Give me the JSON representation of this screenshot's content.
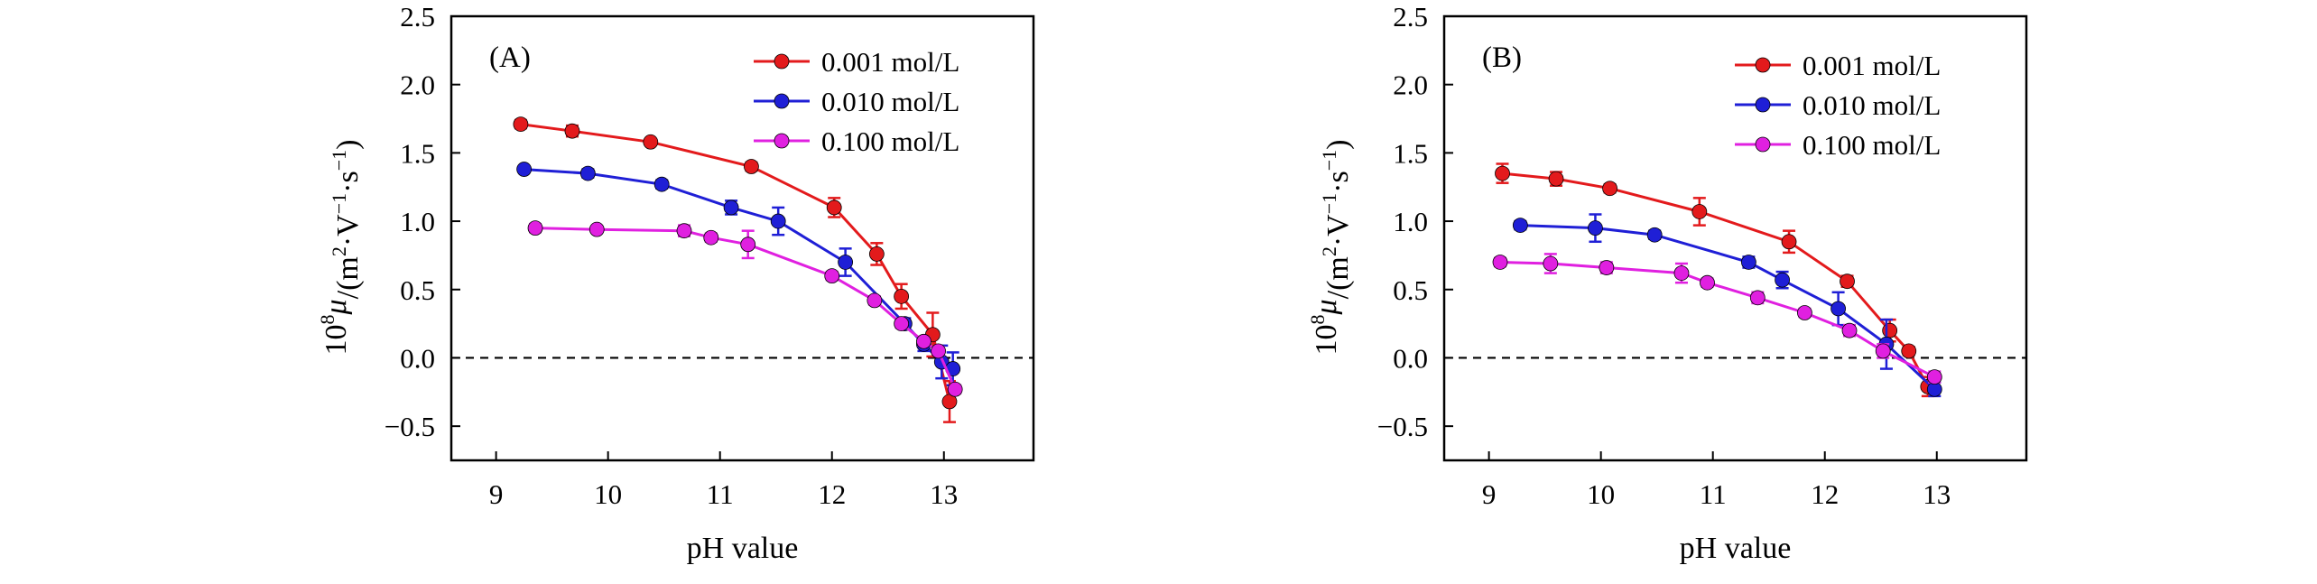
{
  "chart_data": [
    {
      "type": "line",
      "panel_label": "(A)",
      "title": "",
      "xlabel": "pH value",
      "ylabel_prefix": "10",
      "ylabel_exp": "8",
      "ylabel_mu": "μ",
      "ylabel_rest": "/(m",
      "ylabel_2": "2",
      "ylabel_V": "·V",
      "ylabel_m1a": "−1",
      "ylabel_s": "·s",
      "ylabel_m1b": "−1",
      "ylabel_close": ")",
      "xlim": [
        8.6,
        13.8
      ],
      "ylim": [
        -0.75,
        2.5
      ],
      "xticks": [
        9,
        10,
        11,
        12,
        13
      ],
      "xtick_labels": [
        "9",
        "10",
        "11",
        "12",
        "13"
      ],
      "yticks": [
        -0.5,
        0.0,
        0.5,
        1.0,
        1.5,
        2.0,
        2.5
      ],
      "ytick_labels": [
        "−0.5",
        "0.0",
        "0.5",
        "1.0",
        "1.5",
        "2.0",
        "2.5"
      ],
      "zero_line": 0,
      "legend_position": "top-right",
      "series": [
        {
          "name": "0.001 mol/L",
          "color": "#e31a1c",
          "x": [
            9.22,
            9.68,
            10.38,
            11.28,
            12.02,
            12.4,
            12.62,
            12.9,
            13.05
          ],
          "y": [
            1.71,
            1.66,
            1.58,
            1.4,
            1.1,
            0.76,
            0.45,
            0.17,
            -0.32
          ],
          "err": [
            0.03,
            0.04,
            0.02,
            0.03,
            0.07,
            0.08,
            0.09,
            0.16,
            0.15
          ]
        },
        {
          "name": "0.010 mol/L",
          "color": "#1f1fd6",
          "x": [
            9.25,
            9.82,
            10.48,
            11.1,
            11.52,
            12.12,
            12.65,
            12.82,
            12.98,
            13.08
          ],
          "y": [
            1.38,
            1.35,
            1.27,
            1.1,
            1.0,
            0.7,
            0.25,
            0.1,
            -0.03,
            -0.08
          ],
          "err": [
            0.02,
            0.03,
            0.03,
            0.05,
            0.1,
            0.1,
            0.04,
            0.05,
            0.12,
            0.12
          ],
          "err_left": [
            false,
            false,
            false,
            false,
            false,
            false,
            true,
            false,
            false,
            false
          ]
        },
        {
          "name": "0.100 mol/L",
          "color": "#e020e0",
          "x": [
            9.35,
            9.9,
            10.68,
            10.92,
            11.25,
            12.0,
            12.38,
            12.62,
            12.82,
            12.95,
            13.1
          ],
          "y": [
            0.95,
            0.94,
            0.93,
            0.88,
            0.83,
            0.6,
            0.42,
            0.25,
            0.12,
            0.05,
            -0.23
          ],
          "err": [
            0.03,
            0.02,
            0.04,
            0.03,
            0.1,
            0.03,
            0.03,
            0.03,
            0.03,
            0.03,
            0.03
          ]
        }
      ]
    },
    {
      "type": "line",
      "panel_label": "(B)",
      "title": "",
      "xlabel": "pH value",
      "ylabel_prefix": "10",
      "ylabel_exp": "8",
      "ylabel_mu": "μ",
      "ylabel_rest": "/(m",
      "ylabel_2": "2",
      "ylabel_V": "·V",
      "ylabel_m1a": "−1",
      "ylabel_s": "·s",
      "ylabel_m1b": "−1",
      "ylabel_close": ")",
      "xlim": [
        8.6,
        13.8
      ],
      "ylim": [
        -0.75,
        2.5
      ],
      "xticks": [
        9,
        10,
        11,
        12,
        13
      ],
      "xtick_labels": [
        "9",
        "10",
        "11",
        "12",
        "13"
      ],
      "yticks": [
        -0.5,
        0.0,
        0.5,
        1.0,
        1.5,
        2.0,
        2.5
      ],
      "ytick_labels": [
        "−0.5",
        "0.0",
        "0.5",
        "1.0",
        "1.5",
        "2.0",
        "2.5"
      ],
      "zero_line": 0,
      "legend_position": "top-right",
      "series": [
        {
          "name": "0.001 mol/L",
          "color": "#e31a1c",
          "x": [
            9.12,
            9.6,
            10.08,
            10.88,
            11.68,
            12.2,
            12.58,
            12.75,
            12.92
          ],
          "y": [
            1.35,
            1.31,
            1.24,
            1.07,
            0.85,
            0.56,
            0.2,
            0.05,
            -0.21
          ],
          "err": [
            0.07,
            0.05,
            0.03,
            0.1,
            0.08,
            0.04,
            0.08,
            0.03,
            0.07
          ]
        },
        {
          "name": "0.010 mol/L",
          "color": "#1f1fd6",
          "x": [
            9.28,
            9.95,
            10.48,
            11.32,
            11.62,
            12.12,
            12.55,
            12.98
          ],
          "y": [
            0.97,
            0.95,
            0.9,
            0.7,
            0.57,
            0.36,
            0.1,
            -0.23
          ],
          "err": [
            0.03,
            0.1,
            0.03,
            0.04,
            0.06,
            0.12,
            0.18,
            0.05
          ]
        },
        {
          "name": "0.100 mol/L",
          "color": "#e020e0",
          "x": [
            9.1,
            9.55,
            10.05,
            10.72,
            10.95,
            11.4,
            11.82,
            12.22,
            12.52,
            12.98
          ],
          "y": [
            0.7,
            0.69,
            0.66,
            0.62,
            0.55,
            0.44,
            0.33,
            0.2,
            0.05,
            -0.14
          ],
          "err": [
            0.03,
            0.07,
            0.04,
            0.07,
            0.03,
            0.04,
            0.03,
            0.04,
            0.05,
            0.04
          ]
        }
      ]
    }
  ]
}
